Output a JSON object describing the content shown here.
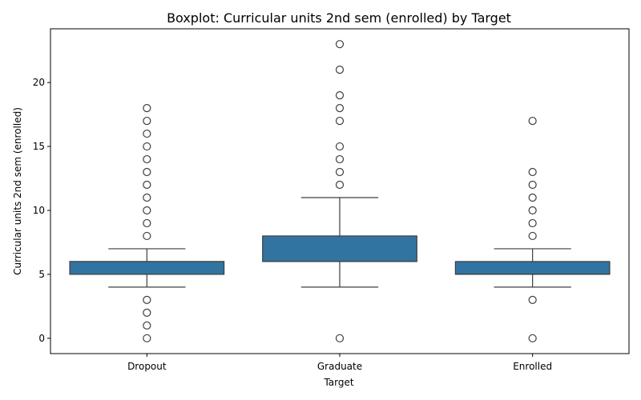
{
  "chart_data": {
    "type": "box",
    "title": "Boxplot: Curricular units 2nd sem (enrolled) by Target",
    "xlabel": "Target",
    "ylabel": "Curricular units 2nd sem (enrolled)",
    "ylim": [
      -1.2,
      24.2
    ],
    "yticks": [
      0,
      5,
      10,
      15,
      20
    ],
    "categories": [
      "Dropout",
      "Graduate",
      "Enrolled"
    ],
    "box_color": "#3274a1",
    "line_color": "#3d3d3d",
    "grid": false,
    "boxes": [
      {
        "category": "Dropout",
        "whisker_low": 4,
        "q1": 5,
        "median": 6,
        "q3": 6,
        "whisker_high": 7,
        "outliers": [
          0,
          1,
          2,
          3,
          8,
          9,
          10,
          11,
          12,
          13,
          14,
          15,
          16,
          17,
          18
        ]
      },
      {
        "category": "Graduate",
        "whisker_low": 4,
        "q1": 6,
        "median": 6,
        "q3": 8,
        "whisker_high": 11,
        "outliers": [
          0,
          12,
          13,
          14,
          15,
          17,
          18,
          19,
          21,
          23
        ]
      },
      {
        "category": "Enrolled",
        "whisker_low": 4,
        "q1": 5,
        "median": 5,
        "q3": 6,
        "whisker_high": 7,
        "outliers": [
          0,
          3,
          8,
          9,
          10,
          11,
          12,
          13,
          17
        ]
      }
    ]
  }
}
